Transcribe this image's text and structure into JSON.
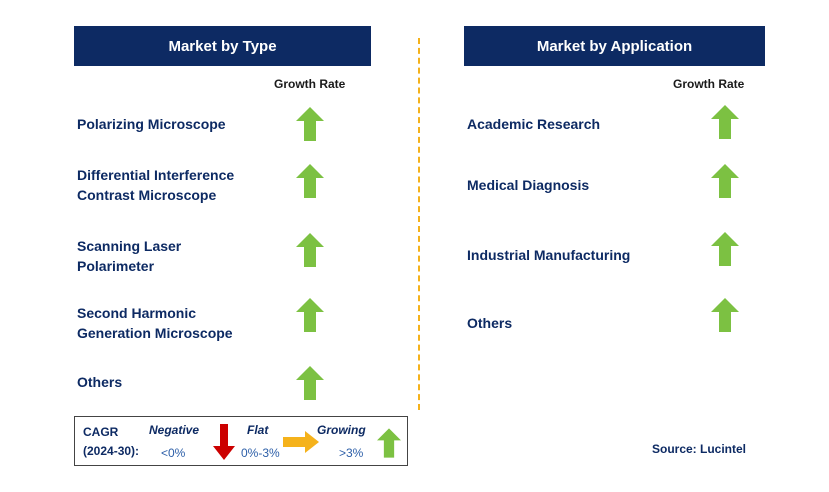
{
  "type_panel": {
    "title": "Market by Type",
    "growth_label": "Growth Rate",
    "items": [
      {
        "lines": [
          "Polarizing Microscope"
        ],
        "trend": "growing"
      },
      {
        "lines": [
          "Differential Interference",
          "Contrast Microscope"
        ],
        "trend": "growing"
      },
      {
        "lines": [
          "Scanning Laser",
          "Polarimeter"
        ],
        "trend": "growing"
      },
      {
        "lines": [
          "Second Harmonic",
          "Generation Microscope"
        ],
        "trend": "growing"
      },
      {
        "lines": [
          "Others"
        ],
        "trend": "growing"
      }
    ]
  },
  "application_panel": {
    "title": "Market by Application",
    "growth_label": "Growth Rate",
    "items": [
      {
        "label": "Academic Research",
        "trend": "growing"
      },
      {
        "label": "Medical Diagnosis",
        "trend": "growing"
      },
      {
        "label": "Industrial Manufacturing",
        "trend": "growing"
      },
      {
        "label": "Others",
        "trend": "growing"
      }
    ]
  },
  "legend": {
    "cagr_line1": "CAGR",
    "cagr_line2": "(2024-30):",
    "negative_label": "Negative",
    "negative_value": "<0%",
    "flat_label": "Flat",
    "flat_value": "0%-3%",
    "growing_label": "Growing",
    "growing_value": ">3%"
  },
  "source": "Source: Lucintel",
  "colors": {
    "header_bg": "#0d2a63",
    "growing_arrow": "#7cc142",
    "negative_arrow": "#cc0000",
    "flat_arrow": "#f5b21b",
    "divider": "#f5b21b"
  },
  "icons": {
    "growing": "green-up-arrow-icon",
    "negative": "red-down-arrow-icon",
    "flat": "orange-right-arrow-icon"
  }
}
